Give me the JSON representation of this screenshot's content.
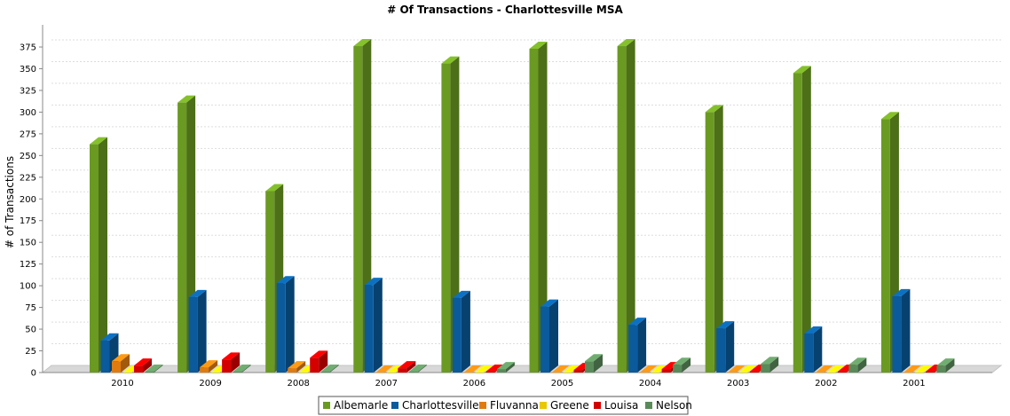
{
  "chart_data": {
    "type": "bar",
    "title": "# Of Transactions - Charlottesville MSA",
    "ylabel": "# of Transactions",
    "xlabel": "",
    "ylim": [
      0,
      375
    ],
    "yticks": [
      0,
      25,
      50,
      75,
      100,
      125,
      150,
      175,
      200,
      225,
      250,
      275,
      300,
      325,
      350,
      375
    ],
    "grid": true,
    "three_d": true,
    "legend_position": "bottom",
    "categories": [
      "2010",
      "2009",
      "2008",
      "2007",
      "2006",
      "2005",
      "2004",
      "2003",
      "2002",
      "2001"
    ],
    "series": [
      {
        "name": "Albemarle",
        "color": "#6a9a22",
        "values": [
          263,
          311,
          209,
          376,
          356,
          373,
          376,
          300,
          345,
          292
        ]
      },
      {
        "name": "Charlottesville",
        "color": "#0a5a9c",
        "values": [
          37,
          87,
          103,
          101,
          86,
          76,
          55,
          51,
          45,
          88
        ]
      },
      {
        "name": "Fluvanna",
        "color": "#e07b10",
        "values": [
          13,
          6,
          5,
          0,
          0,
          0,
          0,
          0,
          0,
          0
        ]
      },
      {
        "name": "Greene",
        "color": "#e8c800",
        "values": [
          0,
          0,
          0,
          0,
          0,
          0,
          0,
          0,
          0,
          0
        ]
      },
      {
        "name": "Louisa",
        "color": "#d40000",
        "values": [
          8,
          15,
          17,
          5,
          1,
          3,
          4,
          1,
          1,
          1
        ]
      },
      {
        "name": "Nelson",
        "color": "#5a8a5a",
        "values": [
          1,
          1,
          1,
          1,
          4,
          13,
          9,
          10,
          9,
          8
        ]
      }
    ]
  }
}
